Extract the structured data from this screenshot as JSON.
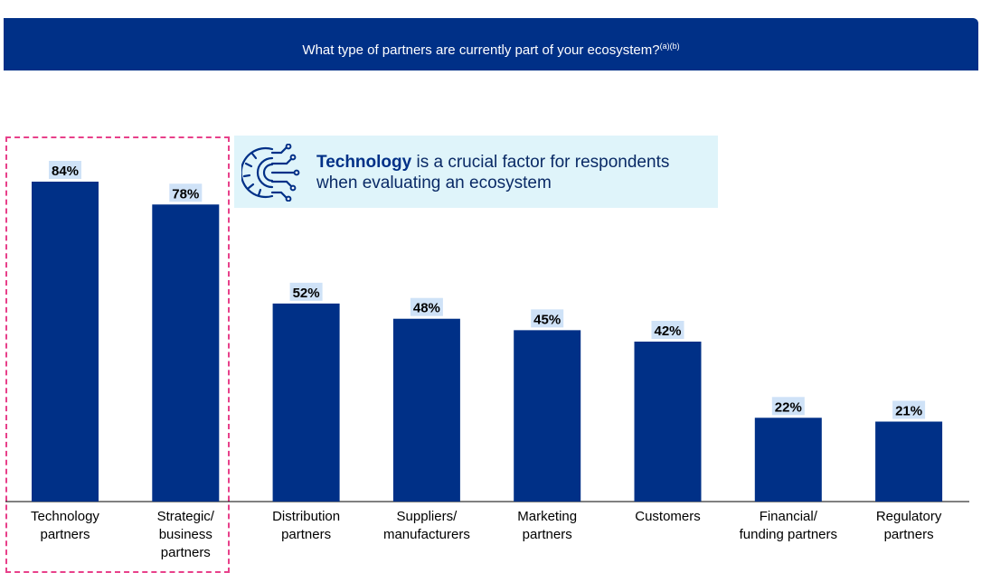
{
  "header": {
    "title": "What type of partners are currently part of your ecosystem?",
    "footnote": "(a)(b)",
    "background_color": "#003087"
  },
  "callout": {
    "icon": "gear-circuit-icon",
    "bold_text": "Technology",
    "text": " is a crucial factor for respondents when evaluating an ecosystem",
    "background_color": "#DFF4FA"
  },
  "highlight": {
    "border_color": "#E8408A",
    "categories": [
      "Technology partners",
      "Strategic/ business partners"
    ]
  },
  "chart_data": {
    "type": "bar",
    "title": "What type of partners are currently part of your ecosystem?",
    "categories": [
      "Technology partners",
      "Strategic/ business partners",
      "Distribution partners",
      "Suppliers/ manufacturers",
      "Marketing partners",
      "Customers",
      "Financial/ funding partners",
      "Regulatory partners"
    ],
    "tick_lines": [
      [
        "Technology",
        "partners"
      ],
      [
        "Strategic/",
        "business",
        "partners"
      ],
      [
        "Distribution",
        "partners"
      ],
      [
        "Suppliers/",
        "manufacturers"
      ],
      [
        "Marketing",
        "partners"
      ],
      [
        "Customers"
      ],
      [
        "Financial/",
        "funding partners"
      ],
      [
        "Regulatory",
        "partners"
      ]
    ],
    "values": [
      84,
      78,
      52,
      48,
      45,
      42,
      22,
      21
    ],
    "data_labels": [
      "84%",
      "78%",
      "52%",
      "48%",
      "45%",
      "42%",
      "22%",
      "21%"
    ],
    "unit": "%",
    "ylim": [
      0,
      100
    ],
    "xlabel": "",
    "ylabel": "",
    "grid": false,
    "bar_color": "#003087",
    "label_bg_color": "#CFE2F7"
  }
}
